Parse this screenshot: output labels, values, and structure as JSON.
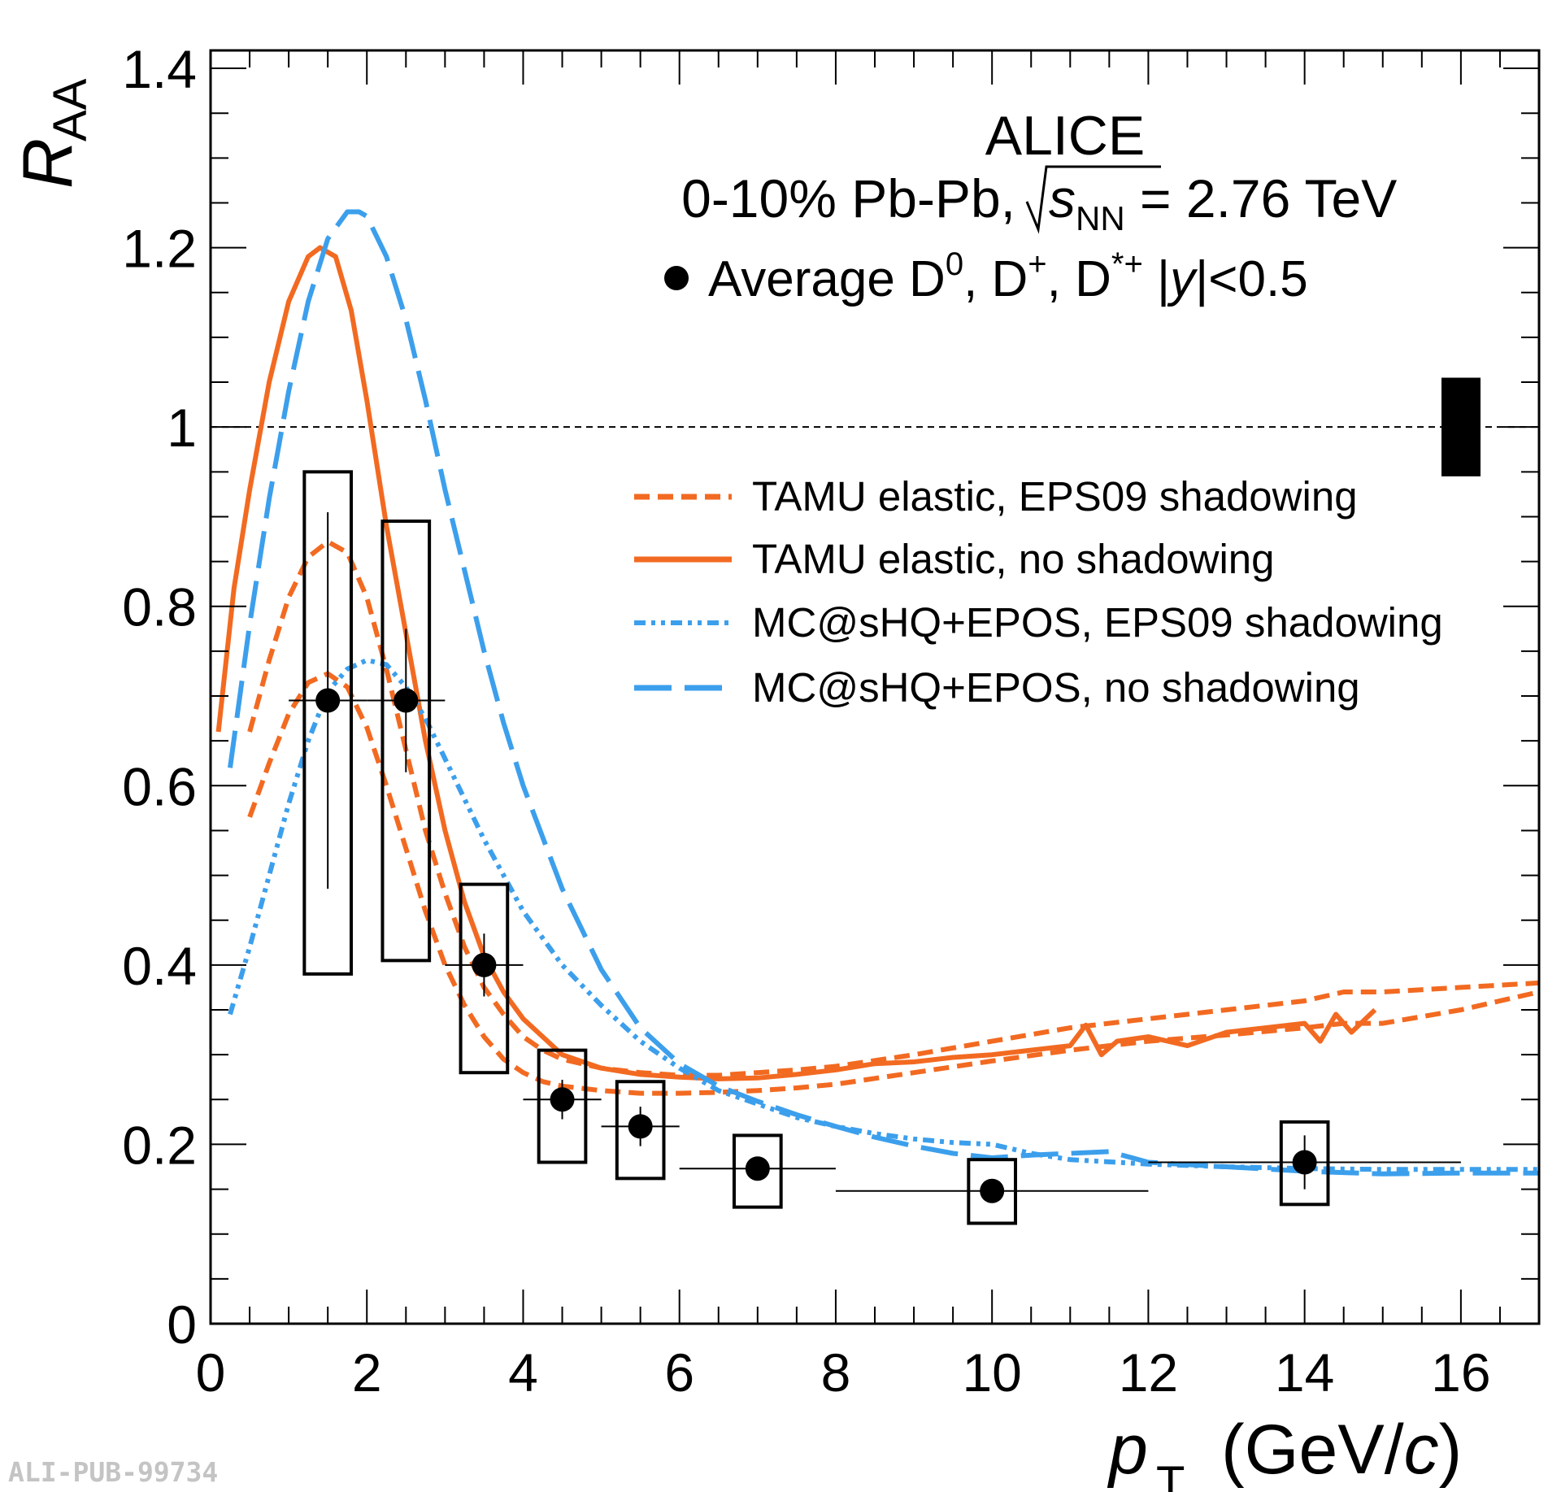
{
  "chart_data": {
    "type": "scatter",
    "title": "",
    "xlabel": "p_T (GeV/c)",
    "ylabel": "R_AA",
    "xlim": [
      0,
      17
    ],
    "ylim": [
      0,
      1.42
    ],
    "x_ticks": [
      0,
      2,
      4,
      6,
      8,
      10,
      12,
      14,
      16
    ],
    "y_ticks": [
      0,
      0.2,
      0.4,
      0.6,
      0.8,
      1,
      1.2,
      1.4
    ],
    "x_tick_labels": [
      "0",
      "2",
      "4",
      "6",
      "8",
      "10",
      "12",
      "14",
      "16"
    ],
    "y_tick_labels": [
      "0",
      "0.2",
      "0.4",
      "0.6",
      "0.8",
      "1",
      "1.2",
      "1.4"
    ],
    "reference_line": 1.0,
    "normalization_uncertainty": [
      0.945,
      1.055
    ],
    "annotations": {
      "experiment": "ALICE",
      "system_prefix": "0-10% Pb-Pb,",
      "energy_suffix": " = 2.76 TeV",
      "data_label": "Average D, D, D |y|<0.5",
      "watermark": "ALI-PUB-99734"
    },
    "data": {
      "name": "Average D0, D+, D*+ |y|<0.5",
      "color": "#000000",
      "points": [
        {
          "x": 1.5,
          "xlo": 1,
          "xhi": 2,
          "y": 0.695,
          "stat_lo": 0.485,
          "stat_hi": 0.905,
          "sys_lo": 0.39,
          "sys_hi": 0.95
        },
        {
          "x": 2.5,
          "xlo": 2,
          "xhi": 3,
          "y": 0.695,
          "stat_lo": 0.615,
          "stat_hi": 0.775,
          "sys_lo": 0.405,
          "sys_hi": 0.895
        },
        {
          "x": 3.5,
          "xlo": 3,
          "xhi": 4,
          "y": 0.4,
          "stat_lo": 0.365,
          "stat_hi": 0.435,
          "sys_lo": 0.28,
          "sys_hi": 0.49
        },
        {
          "x": 4.5,
          "xlo": 4,
          "xhi": 5,
          "y": 0.25,
          "stat_lo": 0.228,
          "stat_hi": 0.272,
          "sys_lo": 0.18,
          "sys_hi": 0.305
        },
        {
          "x": 5.5,
          "xlo": 5,
          "xhi": 6,
          "y": 0.22,
          "stat_lo": 0.198,
          "stat_hi": 0.242,
          "sys_lo": 0.162,
          "sys_hi": 0.27
        },
        {
          "x": 7,
          "xlo": 6,
          "xhi": 8,
          "y": 0.173,
          "stat_lo": 0.16,
          "stat_hi": 0.186,
          "sys_lo": 0.13,
          "sys_hi": 0.21
        },
        {
          "x": 10,
          "xlo": 8,
          "xhi": 12,
          "y": 0.148,
          "stat_lo": 0.138,
          "stat_hi": 0.158,
          "sys_lo": 0.112,
          "sys_hi": 0.183
        },
        {
          "x": 14,
          "xlo": 12,
          "xhi": 16,
          "y": 0.18,
          "stat_lo": 0.15,
          "stat_hi": 0.21,
          "sys_lo": 0.133,
          "sys_hi": 0.225
        }
      ]
    },
    "series": [
      {
        "name": "TAMU elastic, EPS09 shadowing",
        "color": "#f26a21",
        "style": "dashed",
        "band": true,
        "x": [
          0.5,
          0.75,
          1.0,
          1.25,
          1.5,
          1.75,
          2.0,
          2.25,
          2.5,
          2.75,
          3.0,
          3.25,
          3.5,
          3.75,
          4.0,
          4.25,
          4.5,
          5.0,
          5.5,
          6.0,
          6.5,
          7.0,
          7.5,
          8.0,
          9.0,
          10.0,
          11.0,
          12.0,
          13.0,
          14.0,
          14.5,
          15.0,
          16.0,
          17.0
        ],
        "upper": [
          0.66,
          0.74,
          0.81,
          0.855,
          0.872,
          0.86,
          0.81,
          0.73,
          0.64,
          0.55,
          0.48,
          0.42,
          0.375,
          0.345,
          0.32,
          0.305,
          0.295,
          0.285,
          0.28,
          0.277,
          0.277,
          0.28,
          0.283,
          0.287,
          0.3,
          0.315,
          0.33,
          0.34,
          0.35,
          0.36,
          0.37,
          0.37,
          0.375,
          0.38
        ],
        "lower": [
          0.565,
          0.625,
          0.68,
          0.715,
          0.725,
          0.71,
          0.665,
          0.6,
          0.53,
          0.46,
          0.4,
          0.355,
          0.32,
          0.295,
          0.28,
          0.27,
          0.265,
          0.26,
          0.257,
          0.257,
          0.258,
          0.26,
          0.263,
          0.267,
          0.28,
          0.293,
          0.305,
          0.315,
          0.322,
          0.33,
          0.335,
          0.335,
          0.35,
          0.37
        ]
      },
      {
        "name": "TAMU elastic, no shadowing",
        "color": "#f26a21",
        "style": "solid",
        "x": [
          0.1,
          0.3,
          0.5,
          0.75,
          1.0,
          1.25,
          1.4,
          1.6,
          1.8,
          2.0,
          2.25,
          2.5,
          2.75,
          3.0,
          3.25,
          3.5,
          3.75,
          4.0,
          4.5,
          5.0,
          5.5,
          6.0,
          6.5,
          7.0,
          7.5,
          8.0,
          8.5,
          9.0,
          9.5,
          10.0,
          10.5,
          11.0,
          11.2,
          11.4,
          11.6,
          12.0,
          12.5,
          13.0,
          13.5,
          14.0,
          14.2,
          14.4,
          14.6,
          14.9
        ],
        "y": [
          0.66,
          0.82,
          0.93,
          1.05,
          1.14,
          1.19,
          1.2,
          1.19,
          1.13,
          1.03,
          0.89,
          0.77,
          0.65,
          0.55,
          0.47,
          0.41,
          0.37,
          0.34,
          0.3,
          0.285,
          0.278,
          0.275,
          0.273,
          0.274,
          0.278,
          0.283,
          0.29,
          0.292,
          0.297,
          0.3,
          0.305,
          0.31,
          0.333,
          0.3,
          0.315,
          0.32,
          0.31,
          0.325,
          0.33,
          0.335,
          0.315,
          0.345,
          0.325,
          0.35
        ]
      },
      {
        "name": "MC@sHQ+EPOS, EPS09 shadowing",
        "color": "#3c9fec",
        "style": "dash-dot-dot",
        "x": [
          0.25,
          0.5,
          0.75,
          1.0,
          1.25,
          1.5,
          1.75,
          2.0,
          2.25,
          2.5,
          2.75,
          3.0,
          3.5,
          4.0,
          4.5,
          5.0,
          5.5,
          6.0,
          6.5,
          7.0,
          7.5,
          8.0,
          8.5,
          9.0,
          9.5,
          10.0,
          10.5,
          11.0,
          12.0,
          13.0,
          14.0,
          15.0,
          16.0,
          17.0
        ],
        "y": [
          0.345,
          0.42,
          0.5,
          0.58,
          0.65,
          0.705,
          0.73,
          0.74,
          0.735,
          0.71,
          0.675,
          0.63,
          0.54,
          0.46,
          0.4,
          0.355,
          0.315,
          0.285,
          0.26,
          0.245,
          0.23,
          0.22,
          0.212,
          0.206,
          0.202,
          0.2,
          0.19,
          0.183,
          0.178,
          0.175,
          0.173,
          0.172,
          0.172,
          0.172
        ]
      },
      {
        "name": "MC@sHQ+EPOS, no shadowing",
        "color": "#3c9fec",
        "style": "long-dashed",
        "x": [
          0.25,
          0.5,
          0.75,
          1.0,
          1.25,
          1.5,
          1.75,
          1.9,
          2.0,
          2.25,
          2.5,
          2.75,
          3.0,
          3.25,
          3.5,
          3.75,
          4.0,
          4.5,
          5.0,
          5.5,
          6.0,
          6.5,
          7.0,
          7.5,
          8.0,
          8.5,
          9.0,
          9.5,
          10.0,
          10.5,
          11.0,
          11.5,
          12.0,
          13.0,
          14.0,
          15.0,
          16.0,
          17.0
        ],
        "y": [
          0.62,
          0.78,
          0.92,
          1.04,
          1.14,
          1.21,
          1.24,
          1.24,
          1.235,
          1.19,
          1.12,
          1.03,
          0.93,
          0.84,
          0.75,
          0.67,
          0.6,
          0.485,
          0.395,
          0.33,
          0.29,
          0.265,
          0.248,
          0.233,
          0.22,
          0.208,
          0.198,
          0.19,
          0.185,
          0.188,
          0.19,
          0.192,
          0.18,
          0.175,
          0.17,
          0.167,
          0.168,
          0.168
        ]
      }
    ]
  }
}
